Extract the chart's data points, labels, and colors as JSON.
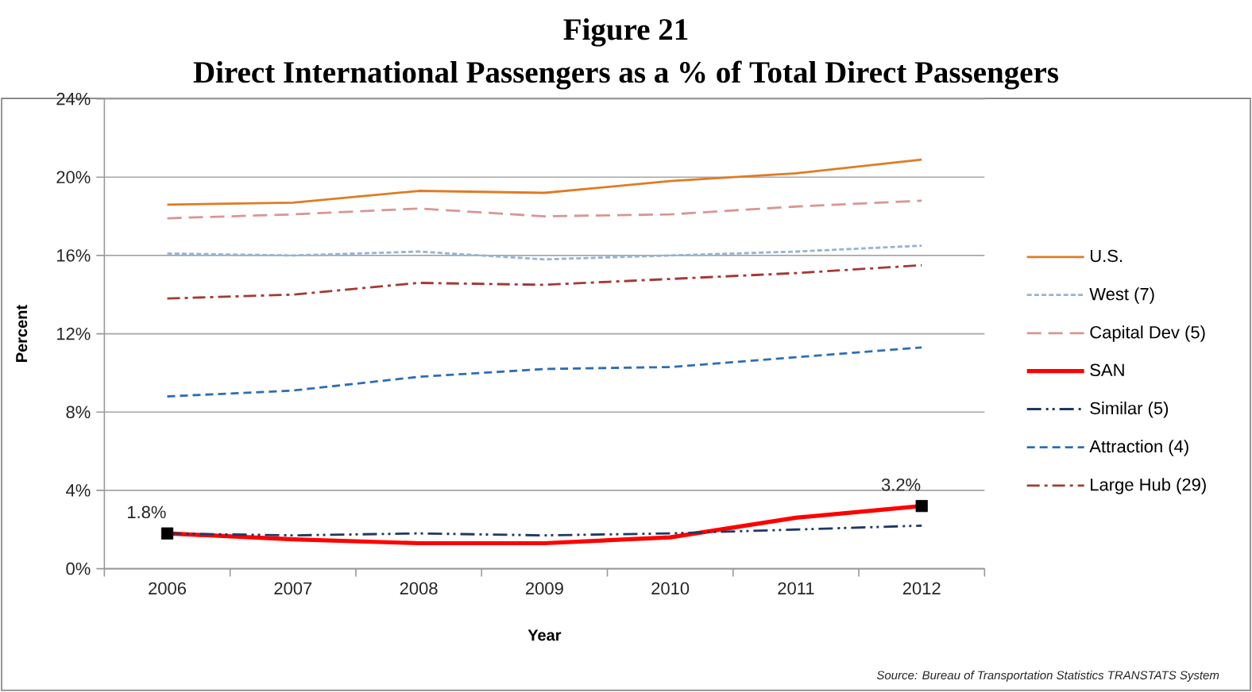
{
  "chart_data": {
    "type": "line",
    "title": "Figure 21",
    "subtitle": "Direct International Passengers as a % of Total Direct Passengers",
    "xlabel": "Year",
    "ylabel": "Percent",
    "categories": [
      "2006",
      "2007",
      "2008",
      "2009",
      "2010",
      "2011",
      "2012"
    ],
    "ylim": [
      0,
      24
    ],
    "yticks": [
      {
        "value": 0,
        "label": "0%"
      },
      {
        "value": 4,
        "label": "4%"
      },
      {
        "value": 8,
        "label": "8%"
      },
      {
        "value": 12,
        "label": "12%"
      },
      {
        "value": 16,
        "label": "16%"
      },
      {
        "value": 20,
        "label": "20%"
      },
      {
        "value": 24,
        "label": "24%"
      }
    ],
    "grid": "y",
    "legend": "right",
    "series": [
      {
        "name": "U.S.",
        "color": "#E07B24",
        "line_style": "solid",
        "values": [
          18.6,
          18.7,
          19.3,
          19.2,
          19.8,
          20.2,
          20.9
        ]
      },
      {
        "name": "West (7)",
        "color": "#95B3D7",
        "line_style": "short dashed",
        "values": [
          16.1,
          16.0,
          16.2,
          15.8,
          16.0,
          16.2,
          16.5
        ]
      },
      {
        "name": "Capital Dev (5)",
        "color": "#D99694",
        "line_style": "long dashed",
        "values": [
          17.9,
          18.1,
          18.4,
          18.0,
          18.1,
          18.5,
          18.8
        ]
      },
      {
        "name": "SAN",
        "color": "#FF0000",
        "line_style": "solid",
        "values": [
          1.8,
          1.5,
          1.3,
          1.3,
          1.6,
          2.6,
          3.2
        ],
        "value_labels": [
          "1.8%",
          null,
          null,
          null,
          null,
          null,
          "3.2%"
        ]
      },
      {
        "name": "Similar (5)",
        "color": "#1F3864",
        "line_style": "long dash dot dot",
        "values": [
          1.8,
          1.7,
          1.8,
          1.7,
          1.8,
          2.0,
          2.2
        ]
      },
      {
        "name": "Attraction (4)",
        "color": "#2E6DB4",
        "line_style": "dashed",
        "values": [
          8.8,
          9.1,
          9.8,
          10.2,
          10.3,
          10.8,
          11.3
        ]
      },
      {
        "name": "Large Hub (29)",
        "color": "#A33A36",
        "line_style": "dash dot",
        "values": [
          13.8,
          14.0,
          14.6,
          14.5,
          14.8,
          15.1,
          15.5
        ]
      }
    ],
    "annotations": [
      "Source: Bureau of Transportation Statistics TRANSTATS System"
    ]
  }
}
